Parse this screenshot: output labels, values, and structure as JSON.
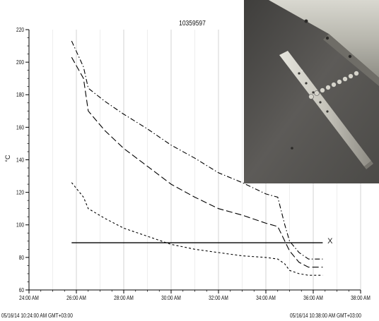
{
  "chart_data": {
    "type": "line",
    "title": "10359597",
    "ylabel": "°C",
    "xlabel": "",
    "ylim": [
      60,
      220
    ],
    "yticks": [
      60,
      80,
      100,
      120,
      140,
      160,
      180,
      200,
      220
    ],
    "xlim": [
      "24:00 AM",
      "38:00 AM"
    ],
    "xticks": [
      "24:00 AM",
      "26:00 AM",
      "28:00 AM",
      "30:00 AM",
      "32:00 AM",
      "34:00 AM",
      "36:00 AM",
      "38:00 AM"
    ],
    "x_minutes": [
      24,
      26,
      28,
      30,
      32,
      34,
      36,
      38
    ],
    "start_timestamp": "05/16/14 10:24:00 AM GMT+03:00",
    "end_timestamp": "05/16/14 10:38:00 AM GMT+03:00",
    "grid": "vertical",
    "series": [
      {
        "style": "dash-dot",
        "points": [
          [
            25.8,
            213
          ],
          [
            26.3,
            197
          ],
          [
            26.5,
            184
          ],
          [
            27.2,
            176
          ],
          [
            28,
            168
          ],
          [
            29,
            159
          ],
          [
            30,
            149
          ],
          [
            31,
            141
          ],
          [
            32,
            132
          ],
          [
            33,
            126
          ],
          [
            34,
            119
          ],
          [
            34.5,
            117
          ],
          [
            34.8,
            100
          ],
          [
            35.0,
            90
          ],
          [
            35.4,
            83
          ],
          [
            35.8,
            79
          ],
          [
            36.4,
            79
          ]
        ]
      },
      {
        "style": "long-dash",
        "points": [
          [
            25.8,
            203
          ],
          [
            26.3,
            190
          ],
          [
            26.5,
            170
          ],
          [
            27.2,
            158
          ],
          [
            28,
            147
          ],
          [
            29,
            136
          ],
          [
            30,
            125
          ],
          [
            31,
            117
          ],
          [
            32,
            110
          ],
          [
            33,
            106
          ],
          [
            34,
            101
          ],
          [
            34.5,
            99
          ],
          [
            34.8,
            90
          ],
          [
            35.0,
            84
          ],
          [
            35.4,
            77
          ],
          [
            35.8,
            74
          ],
          [
            36.4,
            74
          ]
        ]
      },
      {
        "style": "short-dash",
        "points": [
          [
            25.8,
            126
          ],
          [
            26.3,
            117
          ],
          [
            26.5,
            110
          ],
          [
            27.2,
            104
          ],
          [
            28,
            98
          ],
          [
            29,
            93
          ],
          [
            30,
            88
          ],
          [
            31,
            85
          ],
          [
            32,
            83
          ],
          [
            33,
            81
          ],
          [
            34,
            80
          ],
          [
            34.5,
            79
          ],
          [
            34.8,
            76
          ],
          [
            35.0,
            72
          ],
          [
            35.4,
            70
          ],
          [
            35.8,
            69
          ],
          [
            36.4,
            69
          ]
        ]
      },
      {
        "style": "solid",
        "points": [
          [
            25.8,
            89
          ],
          [
            36.4,
            89
          ]
        ]
      }
    ],
    "annotations": [
      {
        "text": "X",
        "at": [
          36.6,
          90
        ]
      }
    ]
  },
  "photo": {
    "alt": "metal bar with thermocouple holes",
    "colors": {
      "bg": "#5d5b58",
      "bar": "#b5b5ae",
      "rod": "#cfcdc5",
      "dark": "#2b2a28"
    }
  }
}
